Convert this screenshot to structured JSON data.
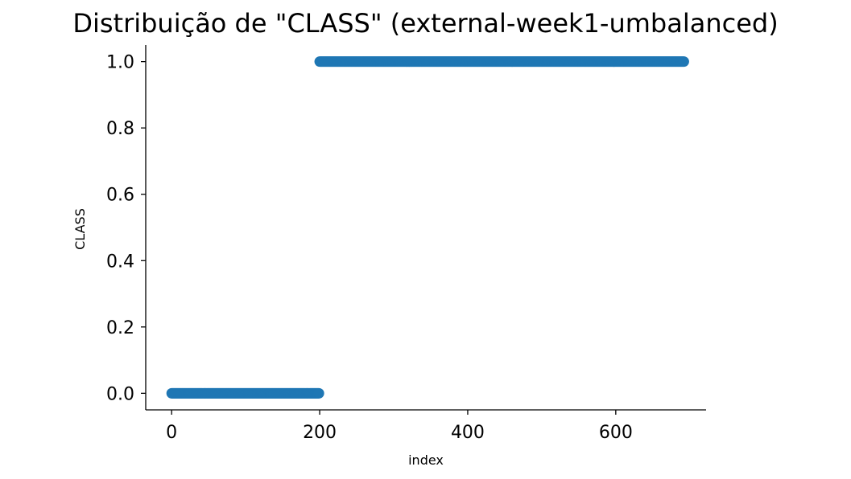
{
  "chart_data": {
    "type": "scatter",
    "title": "Distribuição de \"CLASS\" (external-week1-umbalanced)",
    "xlabel": "index",
    "ylabel": "CLASS",
    "xlim": [
      -35,
      722
    ],
    "ylim": [
      -0.05,
      1.05
    ],
    "xticks": [
      0,
      200,
      400,
      600
    ],
    "yticks": [
      0.0,
      0.2,
      0.4,
      0.6,
      0.8,
      1.0
    ],
    "xtick_labels": [
      "0",
      "200",
      "400",
      "600"
    ],
    "ytick_labels": [
      "0.0",
      "0.2",
      "0.4",
      "0.6",
      "0.8",
      "1.0"
    ],
    "grid": false,
    "series": [
      {
        "color": "#1f77b4",
        "segments": [
          {
            "x_start": 0,
            "x_end": 199,
            "y": 0
          },
          {
            "x_start": 200,
            "x_end": 692,
            "y": 1
          }
        ]
      }
    ]
  }
}
